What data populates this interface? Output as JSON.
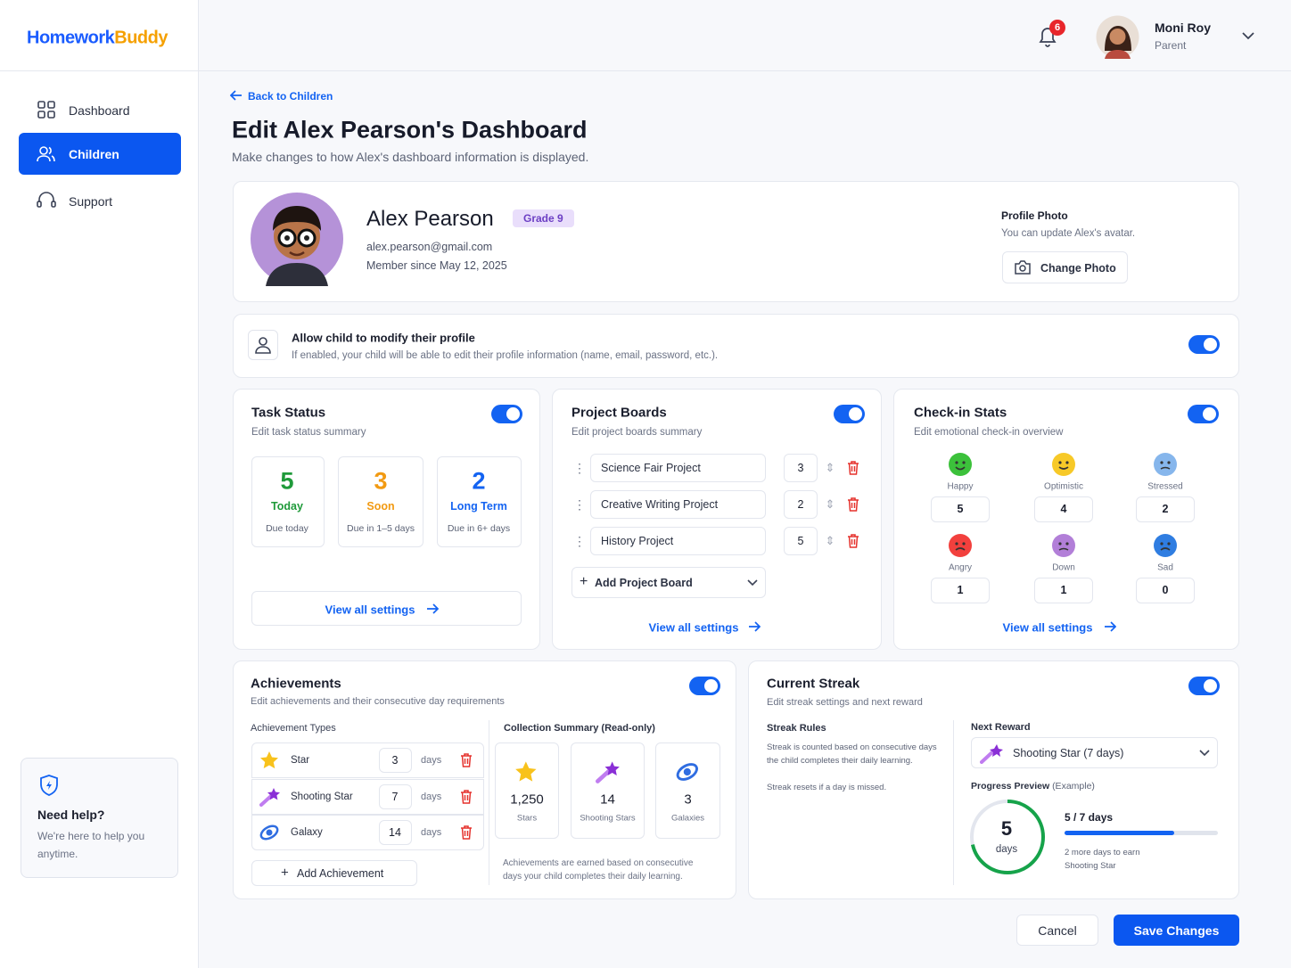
{
  "sidebar": {
    "logo_part1": "Homework",
    "logo_part2": "Buddy",
    "nav": [
      "Dashboard",
      "Children",
      "Support"
    ],
    "help": {
      "title": "Need help?",
      "text": "We're here to help you anytime."
    }
  },
  "header": {
    "notifications": 6,
    "user_name": "Moni Roy",
    "user_role": "Parent"
  },
  "page": {
    "back": "Back to Children",
    "title": "Edit Alex Pearson's Dashboard",
    "subtitle": "Make changes to how Alex's dashboard information is displayed."
  },
  "profile": {
    "name": "Alex Pearson",
    "grade": "Grade 9",
    "email": "alex.pearson@gmail.com",
    "member_since": "Member since May 12, 2025",
    "photo_title": "Profile Photo",
    "photo_text": "You can update Alex's avatar.",
    "photo_button": "Change Photo"
  },
  "permission": {
    "title": "Allow child to modify their profile",
    "text": "If enabled, your child will be able to edit their profile information (name, email, password, etc.).",
    "enabled": true
  },
  "task_status": {
    "title": "Task Status",
    "subtitle": "Edit task status summary",
    "enabled": true,
    "items": [
      {
        "count": 5,
        "label": "Today",
        "note": "Due today"
      },
      {
        "count": 3,
        "label": "Soon",
        "note": "Due in 1–5 days"
      },
      {
        "count": 2,
        "label": "Long Term",
        "note": "Due in 6+ days"
      }
    ],
    "link": "View all settings"
  },
  "project_boards": {
    "title": "Project Boards",
    "subtitle": "Edit project boards summary",
    "enabled": true,
    "boards": [
      {
        "name": "Science Fair Project",
        "count": 3
      },
      {
        "name": "Creative Writing Project",
        "count": 2
      },
      {
        "name": "History Project",
        "count": 5
      }
    ],
    "add": "Add Project Board",
    "link": "View all settings"
  },
  "checkin_stats": {
    "title": "Check-in Stats",
    "subtitle": "Edit emotional check-in overview",
    "enabled": true,
    "moods": [
      {
        "label": "Happy",
        "count": 5
      },
      {
        "label": "Optimistic",
        "count": 4
      },
      {
        "label": "Stressed",
        "count": 2
      },
      {
        "label": "Angry",
        "count": 1
      },
      {
        "label": "Down",
        "count": 1
      },
      {
        "label": "Sad",
        "count": 0
      }
    ],
    "link": "View all settings"
  },
  "achievements": {
    "title": "Achievements",
    "subtitle": "Edit achievements and their consecutive day requirements",
    "enabled": true,
    "types_heading": "Achievement Types",
    "types": [
      {
        "name": "Star",
        "days": 3
      },
      {
        "name": "Shooting Star",
        "days": 7
      },
      {
        "name": "Galaxy",
        "days": 14
      }
    ],
    "days_unit": "days",
    "add": "Add Achievement",
    "summary_heading": "Collection Summary (Read-only)",
    "summary": [
      {
        "count": "1,250",
        "label": "Stars"
      },
      {
        "count": "14",
        "label": "Shooting Stars"
      },
      {
        "count": "3",
        "label": "Galaxies"
      }
    ],
    "note": "Achievements are earned based on consecutive days your child completes their daily learning."
  },
  "streak": {
    "title": "Current Streak",
    "subtitle": "Edit streak settings and next reward",
    "enabled": true,
    "rules_heading": "Streak Rules",
    "rules": [
      "Streak is counted based on consecutive days the child completes their daily learning.",
      "Streak resets if a day is missed."
    ],
    "next_reward_heading": "Next Reward",
    "next_reward": "Shooting Star (7 days)",
    "progress_heading": "Progress Preview",
    "progress_note": "(Example)",
    "current": 5,
    "unit": "days",
    "progress_label": "5 / 7 days",
    "progress_text": "2 more days to earn Shooting Star"
  },
  "actions": {
    "cancel": "Cancel",
    "save": "Save Changes"
  }
}
